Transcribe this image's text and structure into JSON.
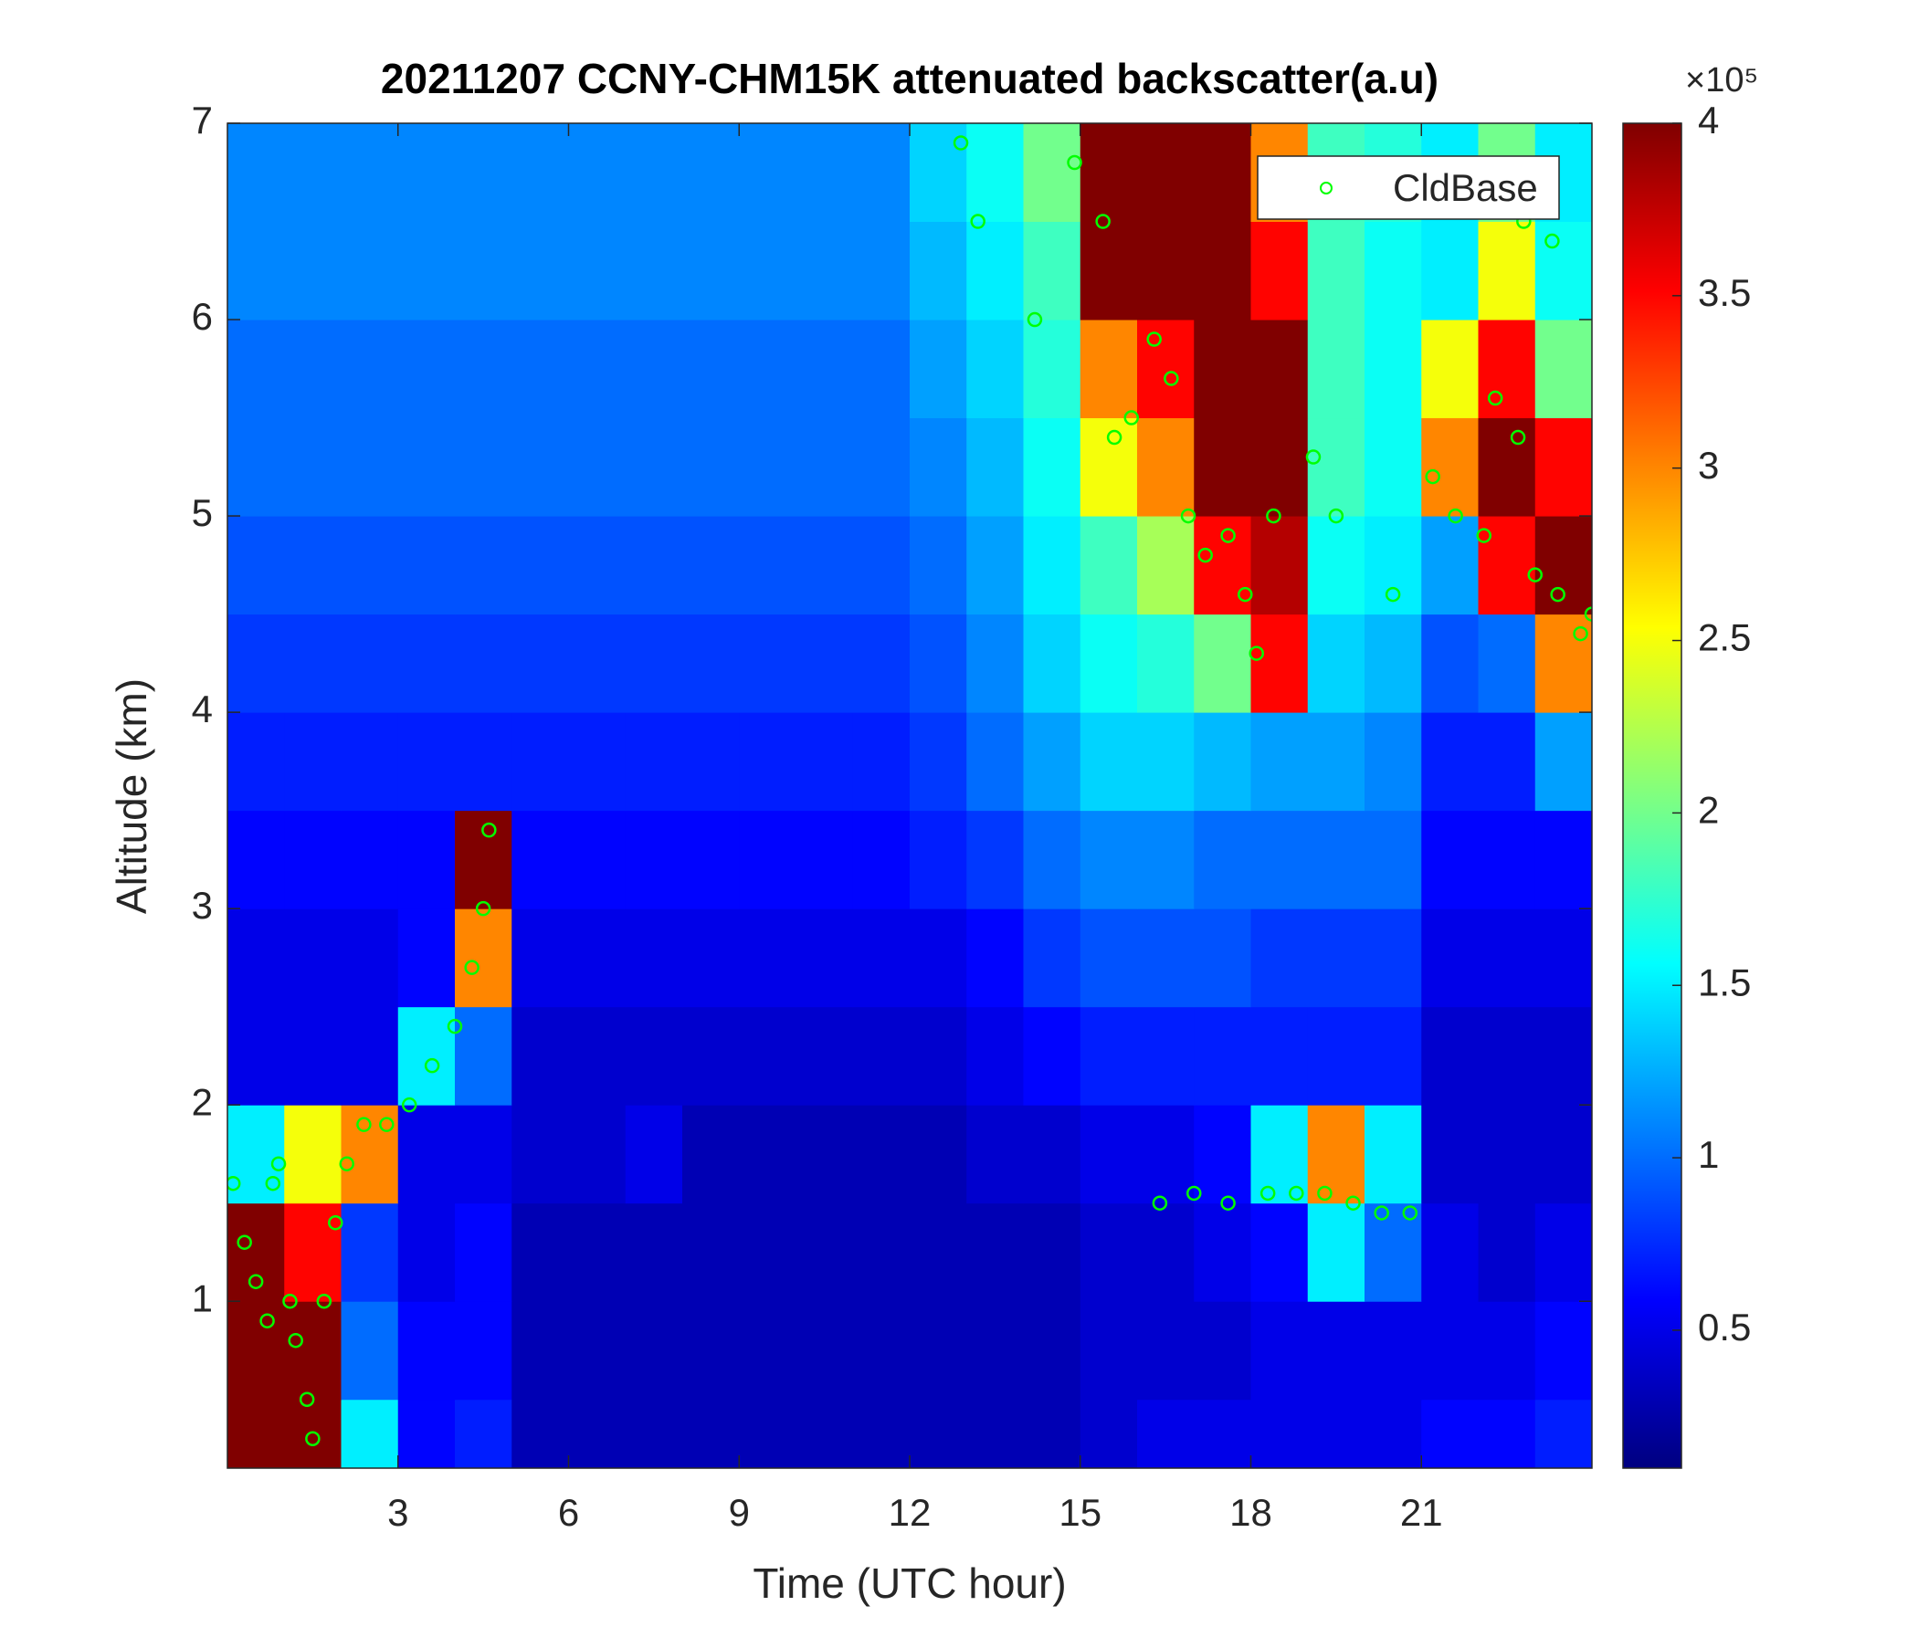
{
  "chart_data": {
    "type": "heatmap",
    "title": "20211207 CCNY-CHM15K attenuated backscatter(a.u)",
    "xlabel": "Time (UTC hour)",
    "ylabel": "Altitude (km)",
    "xlim": [
      0,
      24
    ],
    "ylim": [
      0.15,
      7
    ],
    "xticks": [
      3,
      6,
      9,
      12,
      15,
      18,
      21
    ],
    "yticks": [
      1,
      2,
      3,
      4,
      5,
      6,
      7
    ],
    "colormap": "jet",
    "clim": [
      0.1,
      4
    ],
    "cticks": [
      0.5,
      1,
      1.5,
      2,
      2.5,
      3,
      3.5,
      4
    ],
    "colorbar_exponent_label": "×10⁵",
    "x_bins": [
      0,
      1,
      2,
      3,
      4,
      5,
      6,
      7,
      8,
      9,
      10,
      11,
      12,
      13,
      14,
      15,
      16,
      17,
      18,
      19,
      20,
      21,
      22,
      23,
      24
    ],
    "y_bins": [
      0,
      0.5,
      1,
      1.5,
      2,
      2.5,
      3,
      3.5,
      4,
      4.5,
      5,
      5.5,
      6,
      6.5,
      7
    ],
    "values": [
      [
        4,
        4,
        1.5,
        0.6,
        0.7,
        0.3,
        0.3,
        0.3,
        0.3,
        0.3,
        0.3,
        0.3,
        0.3,
        0.3,
        0.3,
        0.4,
        0.5,
        0.5,
        0.5,
        0.5,
        0.5,
        0.6,
        0.6,
        0.7
      ],
      [
        4,
        4,
        1.0,
        0.6,
        0.6,
        0.3,
        0.3,
        0.3,
        0.3,
        0.3,
        0.3,
        0.3,
        0.3,
        0.3,
        0.3,
        0.4,
        0.4,
        0.4,
        0.5,
        0.5,
        0.5,
        0.5,
        0.5,
        0.6
      ],
      [
        4,
        3.5,
        0.8,
        0.5,
        0.6,
        0.3,
        0.3,
        0.3,
        0.3,
        0.3,
        0.3,
        0.3,
        0.3,
        0.3,
        0.3,
        0.4,
        0.4,
        0.5,
        0.6,
        1.5,
        1.0,
        0.5,
        0.4,
        0.5
      ],
      [
        1.5,
        2.5,
        3.0,
        0.5,
        0.5,
        0.4,
        0.4,
        0.5,
        0.3,
        0.3,
        0.3,
        0.3,
        0.3,
        0.4,
        0.4,
        0.5,
        0.5,
        0.6,
        1.5,
        3.0,
        1.5,
        0.4,
        0.4,
        0.4
      ],
      [
        0.5,
        0.5,
        0.5,
        1.5,
        1.0,
        0.4,
        0.4,
        0.4,
        0.4,
        0.4,
        0.4,
        0.4,
        0.4,
        0.5,
        0.6,
        0.7,
        0.7,
        0.7,
        0.7,
        0.7,
        0.7,
        0.4,
        0.4,
        0.4
      ],
      [
        0.5,
        0.5,
        0.5,
        0.6,
        3.0,
        0.5,
        0.5,
        0.5,
        0.5,
        0.5,
        0.5,
        0.5,
        0.5,
        0.6,
        0.8,
        0.9,
        0.9,
        0.9,
        0.8,
        0.8,
        0.8,
        0.5,
        0.5,
        0.5
      ],
      [
        0.6,
        0.6,
        0.6,
        0.6,
        4,
        0.6,
        0.6,
        0.6,
        0.6,
        0.6,
        0.6,
        0.6,
        0.7,
        0.8,
        1.0,
        1.1,
        1.1,
        1.0,
        1.0,
        1.0,
        1.0,
        0.6,
        0.6,
        0.6
      ],
      [
        0.7,
        0.7,
        0.7,
        0.7,
        0.7,
        0.7,
        0.7,
        0.7,
        0.7,
        0.7,
        0.7,
        0.7,
        0.8,
        1.0,
        1.2,
        1.4,
        1.4,
        1.3,
        1.2,
        1.2,
        1.1,
        0.7,
        0.7,
        1.2
      ],
      [
        0.8,
        0.8,
        0.8,
        0.8,
        0.8,
        0.8,
        0.8,
        0.8,
        0.8,
        0.8,
        0.8,
        0.8,
        0.9,
        1.1,
        1.4,
        1.6,
        1.7,
        2.0,
        3.5,
        1.4,
        1.3,
        0.9,
        1.0,
        3.0
      ],
      [
        0.9,
        0.9,
        0.9,
        0.9,
        0.9,
        0.9,
        0.9,
        0.9,
        0.9,
        0.9,
        0.9,
        0.9,
        1.0,
        1.2,
        1.5,
        1.8,
        2.2,
        3.5,
        3.8,
        1.6,
        1.5,
        1.2,
        3.5,
        4
      ],
      [
        1.0,
        1.0,
        1.0,
        1.0,
        1.0,
        1.0,
        1.0,
        1.0,
        1.0,
        1.0,
        1.0,
        1.0,
        1.1,
        1.3,
        1.6,
        2.5,
        3.0,
        4,
        4,
        1.8,
        1.6,
        3.0,
        4,
        3.5
      ],
      [
        1.0,
        1.0,
        1.0,
        1.0,
        1.0,
        1.0,
        1.0,
        1.0,
        1.0,
        1.0,
        1.0,
        1.0,
        1.2,
        1.4,
        1.7,
        3.0,
        3.5,
        4,
        4,
        1.8,
        1.6,
        2.5,
        3.5,
        2.0
      ],
      [
        1.1,
        1.1,
        1.1,
        1.1,
        1.1,
        1.1,
        1.1,
        1.1,
        1.1,
        1.1,
        1.1,
        1.1,
        1.3,
        1.5,
        1.8,
        4,
        4,
        4,
        3.5,
        1.8,
        1.6,
        1.5,
        2.5,
        1.6
      ],
      [
        1.1,
        1.1,
        1.1,
        1.1,
        1.1,
        1.1,
        1.1,
        1.1,
        1.1,
        1.1,
        1.1,
        1.1,
        1.4,
        1.6,
        2.0,
        4,
        4,
        4,
        3.0,
        1.8,
        1.7,
        1.5,
        2.0,
        1.5
      ]
    ],
    "overlay": {
      "type": "scatter",
      "name": "CldBase",
      "color": "#00ff00",
      "x": [
        0.1,
        0.3,
        0.5,
        0.7,
        0.8,
        0.9,
        1.1,
        1.2,
        1.4,
        1.5,
        1.7,
        1.9,
        2.1,
        2.4,
        2.8,
        3.2,
        3.6,
        4.0,
        4.3,
        4.5,
        4.6,
        12.9,
        13.2,
        14.2,
        14.9,
        15.4,
        15.6,
        15.9,
        16.3,
        16.6,
        16.9,
        17.2,
        17.6,
        17.9,
        18.1,
        18.4,
        19.1,
        19.5,
        16.4,
        17.0,
        17.6,
        18.3,
        18.8,
        19.3,
        19.8,
        20.3,
        20.8,
        20.5,
        21.2,
        21.6,
        22.1,
        22.3,
        22.7,
        23.0,
        23.4,
        23.8,
        24.0,
        23.3,
        22.8
      ],
      "y": [
        1.6,
        1.3,
        1.1,
        0.9,
        1.6,
        1.7,
        1.0,
        0.8,
        0.5,
        0.3,
        1.0,
        1.4,
        1.7,
        1.9,
        1.9,
        2.0,
        2.2,
        2.4,
        2.7,
        3.0,
        3.4,
        6.9,
        6.5,
        6.0,
        6.8,
        6.5,
        5.4,
        5.5,
        5.9,
        5.7,
        5.0,
        4.8,
        4.9,
        4.6,
        4.3,
        5.0,
        5.3,
        5.0,
        1.5,
        1.55,
        1.5,
        1.55,
        1.55,
        1.55,
        1.5,
        1.45,
        1.45,
        4.6,
        5.2,
        5.0,
        4.9,
        5.6,
        5.4,
        4.7,
        4.6,
        4.4,
        4.5,
        6.4,
        6.5
      ]
    },
    "legend": "top-right"
  }
}
